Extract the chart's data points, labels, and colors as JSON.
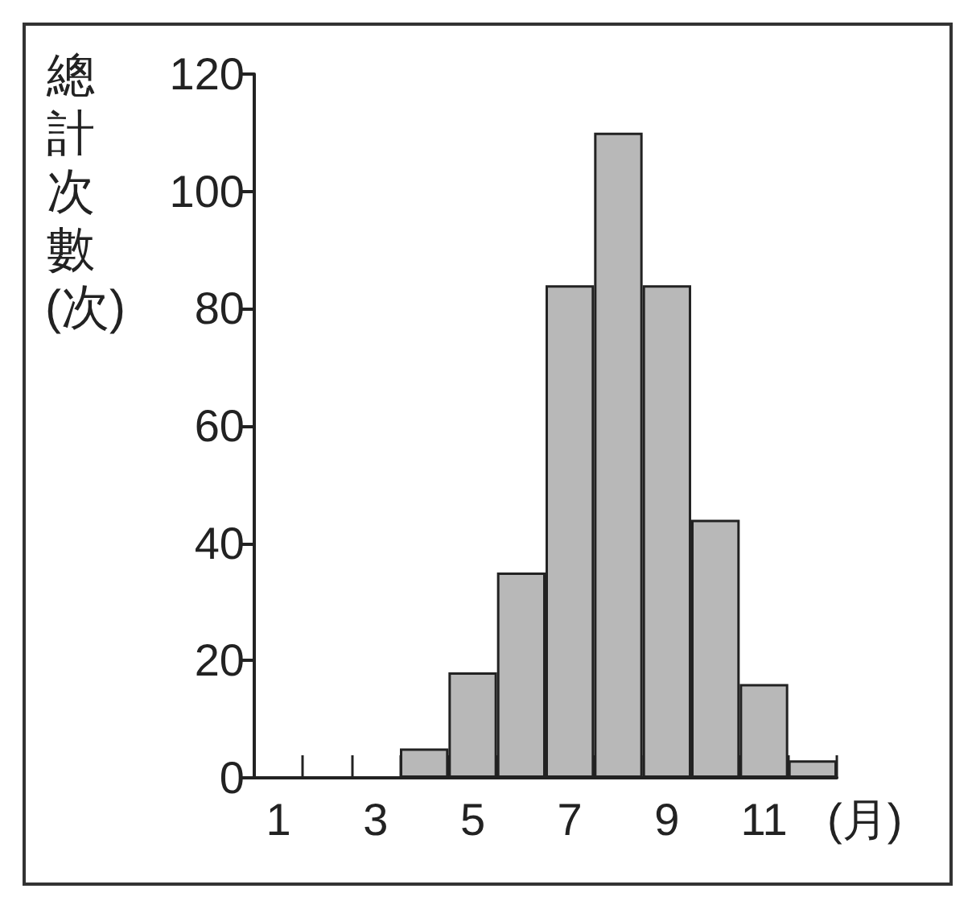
{
  "chart_data": {
    "type": "bar",
    "xlabel": "(月)",
    "ylabel": "總計次數(次)",
    "categories": [
      "1",
      null,
      "3",
      null,
      "5",
      null,
      "7",
      null,
      "9",
      null,
      "11",
      null
    ],
    "values": [
      0,
      0,
      0,
      5,
      18,
      35,
      84,
      110,
      84,
      44,
      16,
      3
    ],
    "color": "#b8b8b8",
    "ylim": [
      0,
      120
    ],
    "yticks": [
      0,
      20,
      40,
      60,
      80,
      100,
      120
    ],
    "grid": false
  }
}
